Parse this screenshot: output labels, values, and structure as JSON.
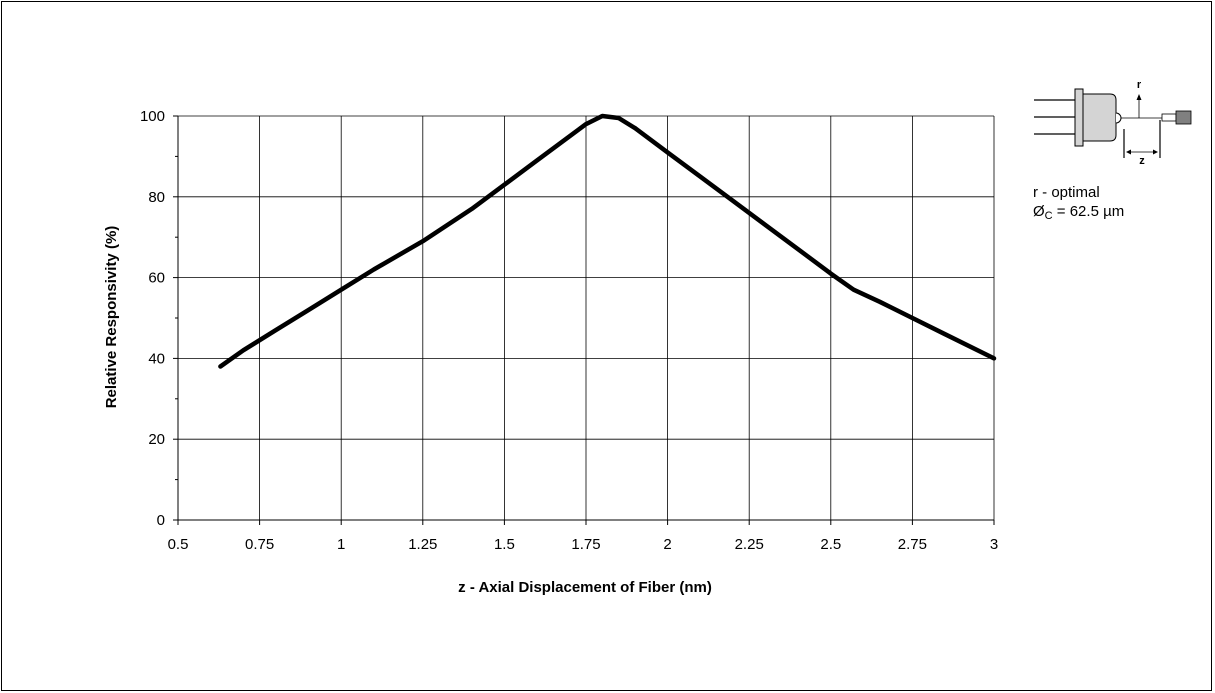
{
  "chart_data": {
    "type": "line",
    "title": "",
    "xlabel": "z - Axial Displacement of Fiber (nm)",
    "ylabel": "Relative Responsivity (%)",
    "xlim": [
      0.5,
      3
    ],
    "ylim": [
      0,
      100
    ],
    "x_ticks": [
      "0.5",
      "0.75",
      "1",
      "1.25",
      "1.5",
      "1.75",
      "2",
      "2.25",
      "2.5",
      "2.75",
      "3"
    ],
    "y_ticks": [
      "0",
      "20",
      "40",
      "60",
      "80",
      "100"
    ],
    "grid": true,
    "line_color": "#000000",
    "series": [
      {
        "x": [
          0.63,
          0.7,
          0.8,
          0.9,
          1.0,
          1.1,
          1.25,
          1.4,
          1.5,
          1.6,
          1.7,
          1.75,
          1.8,
          1.85,
          1.9,
          2.0,
          2.1,
          2.2,
          2.3,
          2.4,
          2.5,
          2.57,
          2.65,
          2.75,
          2.85,
          3.0
        ],
        "y": [
          38,
          42,
          47,
          52,
          57,
          62,
          69,
          77,
          83,
          89,
          95,
          98,
          100,
          99.5,
          97,
          91,
          85,
          79,
          73,
          67,
          61,
          57,
          54,
          50,
          46,
          40
        ]
      }
    ]
  },
  "inset": {
    "r_label": "r",
    "z_label": "z",
    "note_line1": "r - optimal",
    "note_prefix": "Ø",
    "note_sub": "C",
    "note_value": " = 62.5 µm"
  }
}
